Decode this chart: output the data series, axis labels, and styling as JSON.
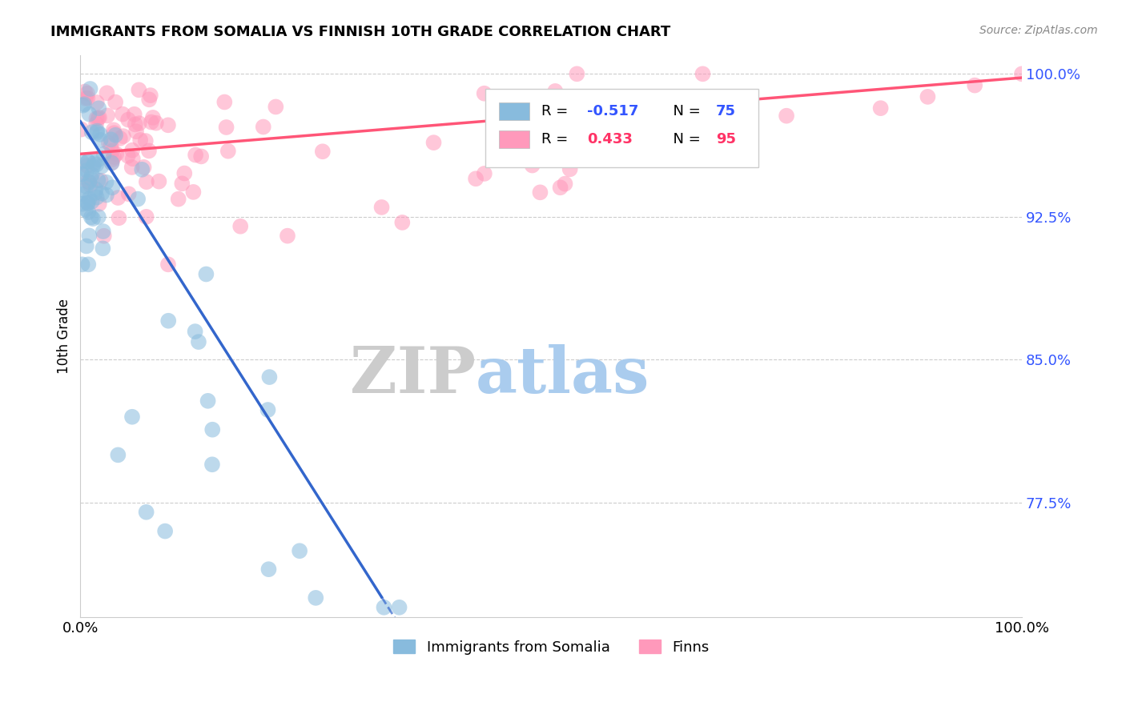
{
  "title": "IMMIGRANTS FROM SOMALIA VS FINNISH 10TH GRADE CORRELATION CHART",
  "source_text": "Source: ZipAtlas.com",
  "ylabel": "10th Grade",
  "xlim": [
    0.0,
    1.0
  ],
  "ylim": [
    0.715,
    1.01
  ],
  "yticks": [
    0.775,
    0.85,
    0.925,
    1.0
  ],
  "ytick_labels": [
    "77.5%",
    "85.0%",
    "92.5%",
    "100.0%"
  ],
  "xtick_labels": [
    "0.0%",
    "100.0%"
  ],
  "xticks": [
    0.0,
    1.0
  ],
  "blue_color": "#88BBDD",
  "pink_color": "#FF99BB",
  "blue_line_color": "#3366CC",
  "pink_line_color": "#FF5577",
  "watermark_zip": "ZIP",
  "watermark_atlas": "atlas",
  "watermark_zip_color": "#CCCCCC",
  "watermark_atlas_color": "#AACCEE",
  "legend_label_blue": "Immigrants from Somalia",
  "legend_label_pink": "Finns",
  "title_fontsize": 13,
  "ytick_color": "#3355FF",
  "source_color": "#888888",
  "blue_r": "-0.517",
  "blue_n": "75",
  "pink_r": "0.433",
  "pink_n": "95",
  "legend_r_color": "#3355FF",
  "legend_n_color": "#3355FF"
}
